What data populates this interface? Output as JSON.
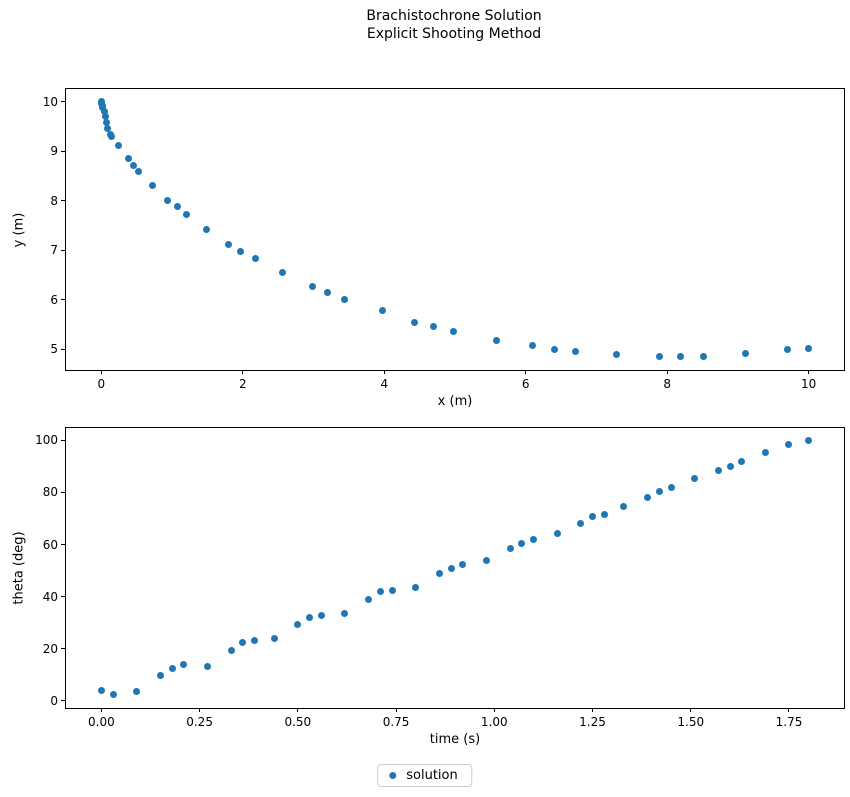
{
  "figure": {
    "title_line1": "Brachistochrone Solution",
    "title_line2": "Explicit Shooting Method"
  },
  "colors": {
    "marker": "#1f77b4",
    "spine": "#000000",
    "text": "#000000",
    "legend_border": "#cccccc"
  },
  "legend": {
    "label": "solution",
    "marker_icon": "filled-circle",
    "position": "lower-center"
  },
  "chart_data": [
    {
      "type": "scatter",
      "series_name": "solution",
      "xlabel": "x (m)",
      "ylabel": "y (m)",
      "xlim": [
        -0.5,
        10.5
      ],
      "ylim": [
        4.58,
        10.26
      ],
      "xtick_values": [
        0,
        2,
        4,
        6,
        8,
        10
      ],
      "xtick_labels": [
        "0",
        "2",
        "4",
        "6",
        "8",
        "10"
      ],
      "ytick_values": [
        5,
        6,
        7,
        8,
        9,
        10
      ],
      "ytick_labels": [
        "5",
        "6",
        "7",
        "8",
        "9",
        "10"
      ],
      "grid": false,
      "points": [
        [
          0.0,
          10.0
        ],
        [
          0.0,
          9.97
        ],
        [
          0.01,
          9.93
        ],
        [
          0.02,
          9.88
        ],
        [
          0.04,
          9.8
        ],
        [
          0.06,
          9.71
        ],
        [
          0.07,
          9.58
        ],
        [
          0.09,
          9.46
        ],
        [
          0.13,
          9.35
        ],
        [
          0.15,
          9.3
        ],
        [
          0.24,
          9.12
        ],
        [
          0.38,
          8.86
        ],
        [
          0.46,
          8.71
        ],
        [
          0.53,
          8.59
        ],
        [
          0.72,
          8.31
        ],
        [
          0.94,
          8.01
        ],
        [
          1.07,
          7.88
        ],
        [
          1.2,
          7.72
        ],
        [
          1.48,
          7.42
        ],
        [
          1.8,
          7.12
        ],
        [
          1.97,
          6.97
        ],
        [
          2.18,
          6.83
        ],
        [
          2.56,
          6.55
        ],
        [
          2.98,
          6.27
        ],
        [
          3.2,
          6.15
        ],
        [
          3.44,
          6.01
        ],
        [
          3.97,
          5.78
        ],
        [
          4.43,
          5.54
        ],
        [
          4.69,
          5.46
        ],
        [
          4.98,
          5.36
        ],
        [
          5.58,
          5.17
        ],
        [
          6.09,
          5.08
        ],
        [
          6.4,
          5.0
        ],
        [
          6.7,
          4.96
        ],
        [
          7.28,
          4.9
        ],
        [
          7.89,
          4.86
        ],
        [
          8.19,
          4.86
        ],
        [
          8.52,
          4.86
        ],
        [
          9.11,
          4.92
        ],
        [
          9.7,
          5.0
        ],
        [
          10.0,
          5.02
        ]
      ]
    },
    {
      "type": "scatter",
      "series_name": "solution",
      "xlabel": "time (s)",
      "ylabel": "theta (deg)",
      "xlim": [
        -0.09,
        1.89
      ],
      "ylim": [
        -2.7,
        104.7
      ],
      "xtick_values": [
        0.0,
        0.25,
        0.5,
        0.75,
        1.0,
        1.25,
        1.5,
        1.75
      ],
      "xtick_labels": [
        "0.00",
        "0.25",
        "0.50",
        "0.75",
        "1.00",
        "1.25",
        "1.50",
        "1.75"
      ],
      "ytick_values": [
        0,
        20,
        40,
        60,
        80,
        100
      ],
      "ytick_labels": [
        "0",
        "20",
        "40",
        "60",
        "80",
        "100"
      ],
      "grid": false,
      "points": [
        [
          0.0,
          4.2
        ],
        [
          0.03,
          2.3
        ],
        [
          0.09,
          3.8
        ],
        [
          0.15,
          9.6
        ],
        [
          0.18,
          12.3
        ],
        [
          0.21,
          13.8
        ],
        [
          0.27,
          13.4
        ],
        [
          0.33,
          19.5
        ],
        [
          0.36,
          22.6
        ],
        [
          0.39,
          23.0
        ],
        [
          0.44,
          23.8
        ],
        [
          0.5,
          29.5
        ],
        [
          0.53,
          32.2
        ],
        [
          0.56,
          32.6
        ],
        [
          0.62,
          33.4
        ],
        [
          0.68,
          39.1
        ],
        [
          0.71,
          41.8
        ],
        [
          0.74,
          42.5
        ],
        [
          0.8,
          43.7
        ],
        [
          0.86,
          49.0
        ],
        [
          0.89,
          51.0
        ],
        [
          0.92,
          52.5
        ],
        [
          0.98,
          54.0
        ],
        [
          1.04,
          58.6
        ],
        [
          1.07,
          60.5
        ],
        [
          1.1,
          62.1
        ],
        [
          1.16,
          64.4
        ],
        [
          1.22,
          68.2
        ],
        [
          1.25,
          70.9
        ],
        [
          1.28,
          71.6
        ],
        [
          1.33,
          74.7
        ],
        [
          1.39,
          78.2
        ],
        [
          1.42,
          80.5
        ],
        [
          1.45,
          82.0
        ],
        [
          1.51,
          85.4
        ],
        [
          1.57,
          88.5
        ],
        [
          1.6,
          90.0
        ],
        [
          1.63,
          91.9
        ],
        [
          1.69,
          95.4
        ],
        [
          1.75,
          98.4
        ],
        [
          1.8,
          100.0
        ]
      ]
    }
  ]
}
